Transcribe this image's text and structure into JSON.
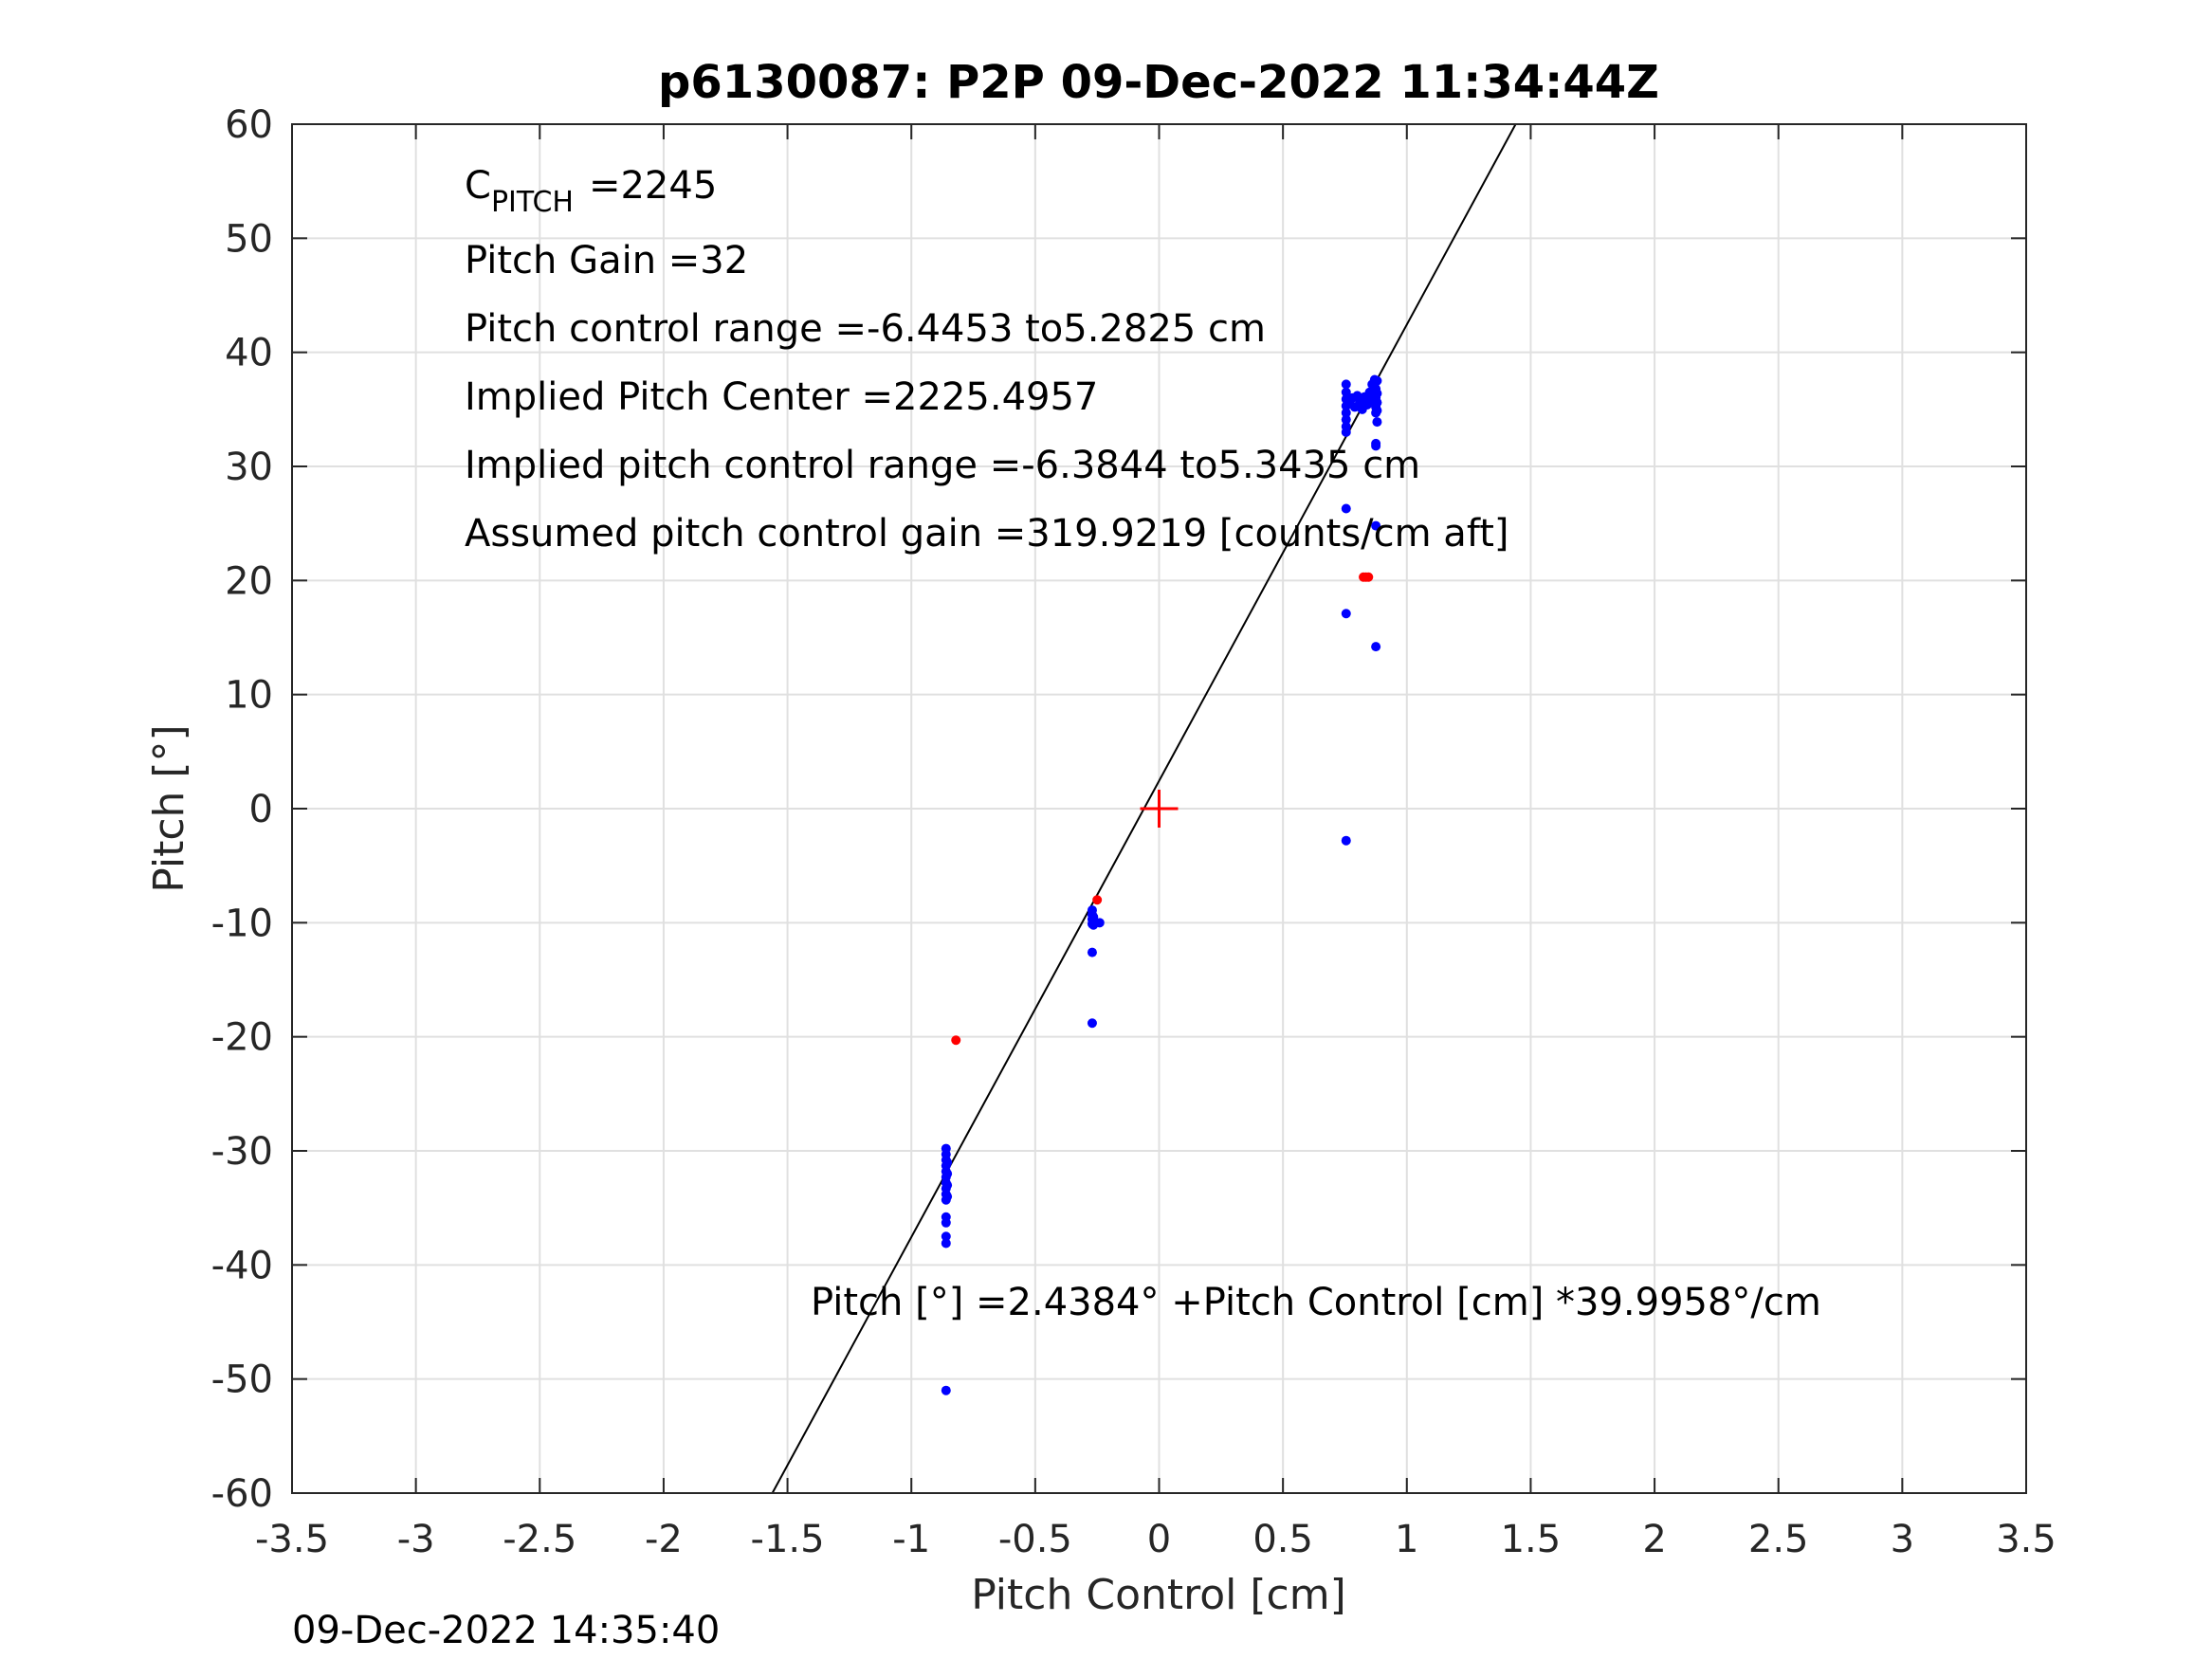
{
  "chart_data": {
    "type": "scatter",
    "title": "p6130087: P2P 09-Dec-2022 11:34:44Z",
    "xlabel": "Pitch Control [cm]",
    "ylabel": "Pitch [°]",
    "xlim": [
      -3.5,
      3.5
    ],
    "ylim": [
      -60,
      60
    ],
    "xticks": [
      -3.5,
      -3,
      -2.5,
      -2,
      -1.5,
      -1,
      -0.5,
      0,
      0.5,
      1,
      1.5,
      2,
      2.5,
      3,
      3.5
    ],
    "xtick_labels": [
      "-3.5",
      "-3",
      "-2.5",
      "-2",
      "-1.5",
      "-1",
      "-0.5",
      "0",
      "0.5",
      "1",
      "1.5",
      "2",
      "2.5",
      "3",
      "3.5"
    ],
    "yticks": [
      -60,
      -50,
      -40,
      -30,
      -20,
      -10,
      0,
      10,
      20,
      30,
      40,
      50,
      60
    ],
    "ytick_labels": [
      "-60",
      "-50",
      "-40",
      "-30",
      "-20",
      "-10",
      "0",
      "10",
      "20",
      "30",
      "40",
      "50",
      "60"
    ],
    "grid": true,
    "colors": {
      "blue": "#0000ff",
      "red": "#ff0000",
      "fit": "#000000",
      "grid": "#e0e0e0",
      "axis": "#262626"
    },
    "fit_line": {
      "intercept": 2.4384,
      "slope": 39.9958
    },
    "center_marker": {
      "x": 0,
      "y": 0,
      "color": "#ff0000"
    },
    "series": [
      {
        "color": "#0000ff",
        "points": [
          [
            -0.86,
            -29.8
          ],
          [
            -0.86,
            -30.3
          ],
          [
            -0.86,
            -30.8
          ],
          [
            -0.86,
            -31.3
          ],
          [
            -0.86,
            -31.8
          ],
          [
            -0.86,
            -32.3
          ],
          [
            -0.86,
            -32.8
          ],
          [
            -0.86,
            -33.3
          ],
          [
            -0.86,
            -33.8
          ],
          [
            -0.86,
            -34.3
          ],
          [
            -0.855,
            -31.0
          ],
          [
            -0.855,
            -32.0
          ],
          [
            -0.855,
            -33.0
          ],
          [
            -0.855,
            -34.0
          ],
          [
            -0.86,
            -35.8
          ],
          [
            -0.86,
            -36.3
          ],
          [
            -0.86,
            -37.5
          ],
          [
            -0.86,
            -38.1
          ],
          [
            -0.86,
            -51.0
          ],
          [
            -0.27,
            -8.9
          ],
          [
            -0.27,
            -9.3
          ],
          [
            -0.27,
            -9.7
          ],
          [
            -0.27,
            -10.1
          ],
          [
            -0.265,
            -9.5
          ],
          [
            -0.265,
            -10.2
          ],
          [
            -0.24,
            -10.0
          ],
          [
            -0.27,
            -12.6
          ],
          [
            -0.27,
            -18.8
          ],
          [
            0.755,
            37.2
          ],
          [
            0.755,
            36.5
          ],
          [
            0.755,
            35.9
          ],
          [
            0.755,
            35.3
          ],
          [
            0.755,
            34.7
          ],
          [
            0.755,
            34.1
          ],
          [
            0.755,
            33.5
          ],
          [
            0.755,
            33.0
          ],
          [
            0.77,
            35.5
          ],
          [
            0.78,
            36.0
          ],
          [
            0.79,
            35.2
          ],
          [
            0.8,
            36.2
          ],
          [
            0.81,
            35.6
          ],
          [
            0.82,
            35.0
          ],
          [
            0.83,
            36.1
          ],
          [
            0.84,
            35.4
          ],
          [
            0.85,
            36.5
          ],
          [
            0.86,
            35.8
          ],
          [
            0.86,
            37.2
          ],
          [
            0.87,
            37.6
          ],
          [
            0.875,
            36.8
          ],
          [
            0.875,
            36.0
          ],
          [
            0.875,
            35.2
          ],
          [
            0.875,
            34.7
          ],
          [
            0.88,
            37.5
          ],
          [
            0.88,
            36.4
          ],
          [
            0.88,
            35.6
          ],
          [
            0.88,
            34.9
          ],
          [
            0.88,
            33.9
          ],
          [
            0.875,
            32.0
          ],
          [
            0.875,
            31.8
          ],
          [
            0.755,
            26.3
          ],
          [
            0.875,
            24.8
          ],
          [
            0.755,
            17.1
          ],
          [
            0.875,
            14.2
          ],
          [
            0.755,
            -2.8
          ]
        ]
      },
      {
        "color": "#ff0000",
        "points": [
          [
            -0.82,
            -20.3
          ],
          [
            -0.25,
            -8.0
          ],
          [
            0.825,
            20.3
          ],
          [
            0.835,
            20.3
          ],
          [
            0.845,
            20.3
          ]
        ]
      }
    ],
    "annotations": {
      "cpitch_prefix": "C",
      "cpitch_sub": "PITCH",
      "cpitch_value": "=2245",
      "pitch_gain": "Pitch Gain =32",
      "pitch_control_range": "Pitch control range =-6.4453 to5.2825 cm",
      "implied_center": "Implied Pitch Center =2225.4957",
      "implied_range": "Implied pitch control range =-6.3844 to5.3435 cm",
      "assumed_gain": "Assumed pitch control gain =319.9219 [counts/cm aft]",
      "fit_equation": "Pitch [°] =2.4384° +Pitch Control [cm] *39.9958°/cm"
    },
    "footer": "09-Dec-2022 14:35:40"
  }
}
